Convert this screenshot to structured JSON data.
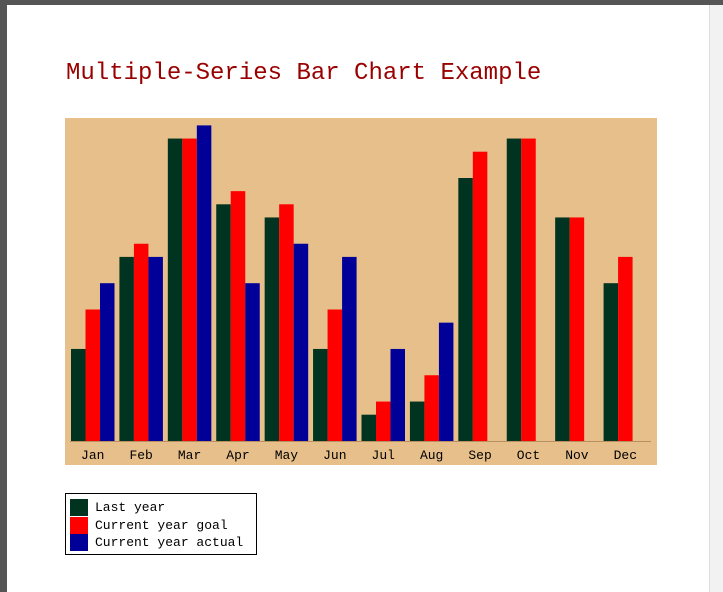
{
  "title": "Multiple-Series Bar Chart Example",
  "colors": {
    "plot_background": "#e6bf8a",
    "baseline": "#b89060"
  },
  "chart_data": {
    "type": "bar",
    "title": "Multiple-Series Bar Chart Example",
    "xlabel": "",
    "ylabel": "",
    "categories": [
      "Jan",
      "Feb",
      "Mar",
      "Apr",
      "May",
      "Jun",
      "Jul",
      "Aug",
      "Sep",
      "Oct",
      "Nov",
      "Dec"
    ],
    "ylim": [
      0,
      25
    ],
    "grid": false,
    "legend_position": "bottom-left",
    "series": [
      {
        "name": "Last year",
        "color": "#003320",
        "values": [
          7,
          14,
          23,
          18,
          17,
          7,
          2,
          3,
          20,
          23,
          17,
          12
        ]
      },
      {
        "name": "Current year goal",
        "color": "#ff0000",
        "values": [
          10,
          15,
          23,
          19,
          18,
          10,
          3,
          5,
          22,
          23,
          17,
          14
        ]
      },
      {
        "name": "Current year actual",
        "color": "#000099",
        "values": [
          12,
          14,
          24,
          12,
          15,
          14,
          7,
          9,
          0,
          0,
          0,
          0
        ]
      }
    ]
  },
  "legend": {
    "items": [
      {
        "label": "Last year",
        "color": "#003320"
      },
      {
        "label": "Current year goal",
        "color": "#ff0000"
      },
      {
        "label": "Current year actual",
        "color": "#000099"
      }
    ]
  }
}
